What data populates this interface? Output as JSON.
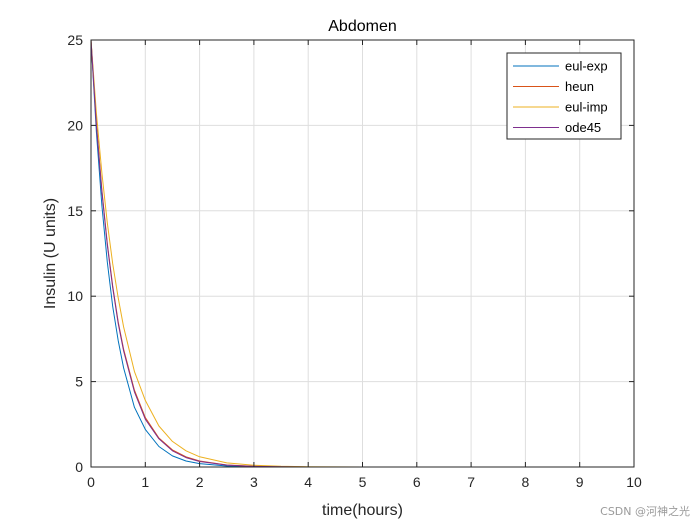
{
  "chart_data": {
    "type": "line",
    "title": "Abdomen",
    "xlabel": "time(hours)",
    "ylabel": "Insulin (U units)",
    "xlim": [
      0,
      10
    ],
    "ylim": [
      0,
      25
    ],
    "xticks": [
      0,
      1,
      2,
      3,
      4,
      5,
      6,
      7,
      8,
      9,
      10
    ],
    "yticks": [
      0,
      5,
      10,
      15,
      20,
      25
    ],
    "grid": true,
    "legend_position": "top-right",
    "series": [
      {
        "name": "eul-exp",
        "color": "#0072BD",
        "x": [
          0,
          0.1,
          0.2,
          0.3,
          0.4,
          0.5,
          0.6,
          0.8,
          1,
          1.25,
          1.5,
          1.75,
          2,
          2.5,
          3,
          3.5,
          4,
          5,
          6,
          7,
          8,
          9,
          10
        ],
        "values": [
          25,
          19.6,
          15.3,
          12.0,
          9.4,
          7.4,
          5.8,
          3.5,
          2.2,
          1.2,
          0.65,
          0.35,
          0.2,
          0.06,
          0.02,
          0.01,
          0,
          0,
          0,
          0,
          0,
          0,
          0
        ]
      },
      {
        "name": "heun",
        "color": "#D95319",
        "x": [
          0,
          0.1,
          0.2,
          0.3,
          0.4,
          0.5,
          0.6,
          0.8,
          1,
          1.25,
          1.5,
          1.75,
          2,
          2.5,
          3,
          3.5,
          4,
          5,
          6,
          7,
          8,
          9,
          10
        ],
        "values": [
          25,
          20.1,
          16.2,
          13.1,
          10.6,
          8.5,
          6.9,
          4.5,
          2.9,
          1.7,
          1.0,
          0.6,
          0.35,
          0.12,
          0.04,
          0.015,
          0,
          0,
          0,
          0,
          0,
          0,
          0
        ]
      },
      {
        "name": "eul-imp",
        "color": "#EDB120",
        "x": [
          0,
          0.1,
          0.2,
          0.3,
          0.4,
          0.5,
          0.6,
          0.8,
          1,
          1.25,
          1.5,
          1.75,
          2,
          2.5,
          3,
          3.5,
          4,
          5,
          6,
          7,
          8,
          9,
          10
        ],
        "values": [
          25,
          20.7,
          17.2,
          14.3,
          11.9,
          9.9,
          8.2,
          5.6,
          3.9,
          2.4,
          1.5,
          0.95,
          0.6,
          0.24,
          0.1,
          0.04,
          0.015,
          0,
          0,
          0,
          0,
          0,
          0
        ]
      },
      {
        "name": "ode45",
        "color": "#7E2F8E",
        "x": [
          0,
          0.1,
          0.2,
          0.3,
          0.4,
          0.5,
          0.6,
          0.8,
          1,
          1.25,
          1.5,
          1.75,
          2,
          2.5,
          3,
          3.5,
          4,
          5,
          6,
          7,
          8,
          9,
          10
        ],
        "values": [
          25,
          20.0,
          16.1,
          13.0,
          10.5,
          8.4,
          6.8,
          4.4,
          2.8,
          1.65,
          0.95,
          0.55,
          0.32,
          0.11,
          0.035,
          0.01,
          0,
          0,
          0,
          0,
          0,
          0,
          0
        ]
      }
    ]
  },
  "watermark": "CSDN @河神之光"
}
